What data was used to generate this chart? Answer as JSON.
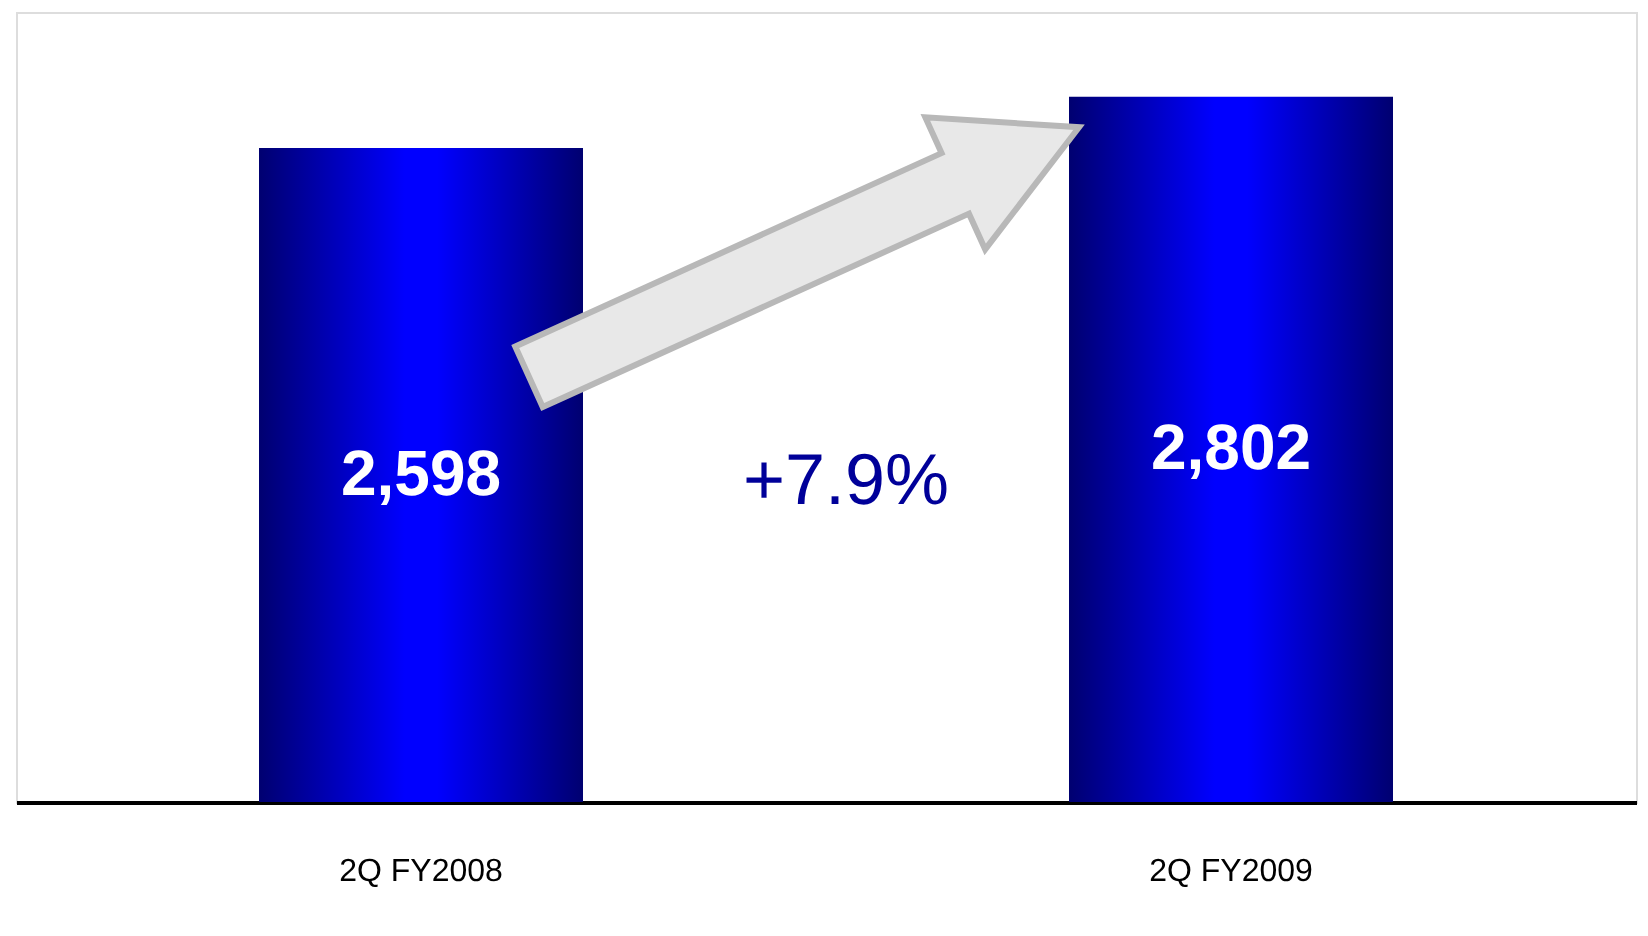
{
  "chart_data": {
    "type": "bar",
    "categories": [
      "2Q FY2008",
      "2Q FY2009"
    ],
    "values": [
      2598,
      2802
    ],
    "color": "#0000ff",
    "value_labels": [
      "2,598",
      "2,802"
    ],
    "tick_labels": "x",
    "grid": false,
    "annotations": [
      "+7.9%"
    ]
  }
}
